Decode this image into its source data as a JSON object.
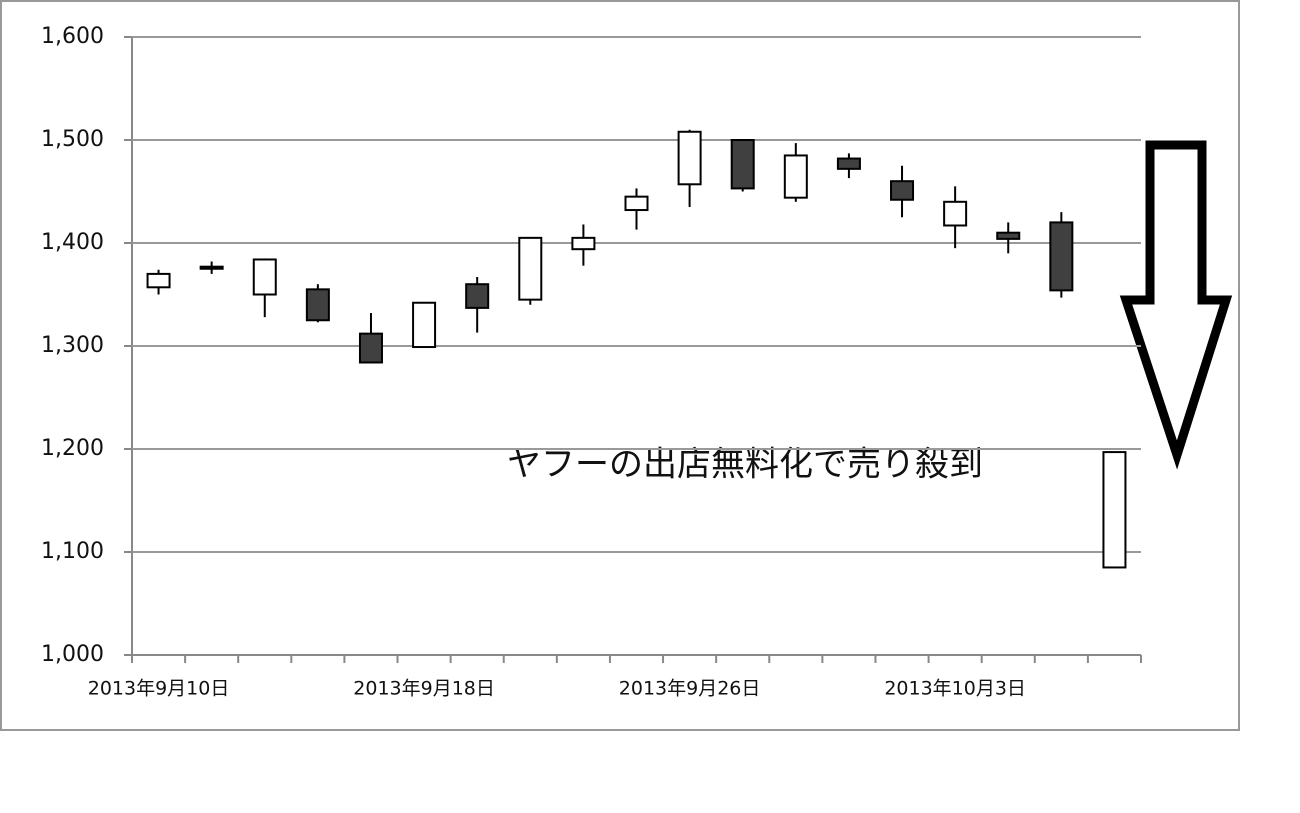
{
  "chart_data": {
    "type": "candlestick",
    "annotation": "ヤフーの出店無料化で売り殺到",
    "categories": [
      "2013年9月10日",
      null,
      null,
      null,
      null,
      "2013年9月18日",
      null,
      null,
      null,
      null,
      "2013年9月26日",
      null,
      null,
      null,
      null,
      "2013年10月3日",
      null,
      null,
      null
    ],
    "open": [
      1357,
      1377,
      1350,
      1355,
      1312,
      1299,
      1360,
      1345,
      1394,
      1432,
      1457,
      1500,
      1444,
      1482,
      1460,
      1417,
      1410,
      1420,
      1085
    ],
    "high": [
      1374,
      1382,
      1385,
      1360,
      1332,
      1342,
      1367,
      1405,
      1418,
      1453,
      1510,
      1500,
      1497,
      1487,
      1475,
      1455,
      1420,
      1430,
      1197
    ],
    "low": [
      1350,
      1370,
      1328,
      1323,
      1284,
      1299,
      1313,
      1340,
      1378,
      1413,
      1435,
      1450,
      1440,
      1463,
      1425,
      1395,
      1390,
      1347,
      1085
    ],
    "close": [
      1370,
      1375,
      1384,
      1325,
      1284,
      1342,
      1337,
      1405,
      1405,
      1445,
      1508,
      1453,
      1485,
      1472,
      1442,
      1440,
      1404,
      1354,
      1197
    ],
    "up_color": "#ffffff",
    "down_color": "#404040",
    "ylim": [
      1000,
      1600
    ],
    "yticks": [
      {
        "value": 1000,
        "label": "1,000"
      },
      {
        "value": 1100,
        "label": "1,100"
      },
      {
        "value": 1200,
        "label": "1,200"
      },
      {
        "value": 1300,
        "label": "1,300"
      },
      {
        "value": 1400,
        "label": "1,400"
      },
      {
        "value": 1500,
        "label": "1,500"
      },
      {
        "value": 1600,
        "label": "1,600"
      }
    ],
    "grid": true
  }
}
